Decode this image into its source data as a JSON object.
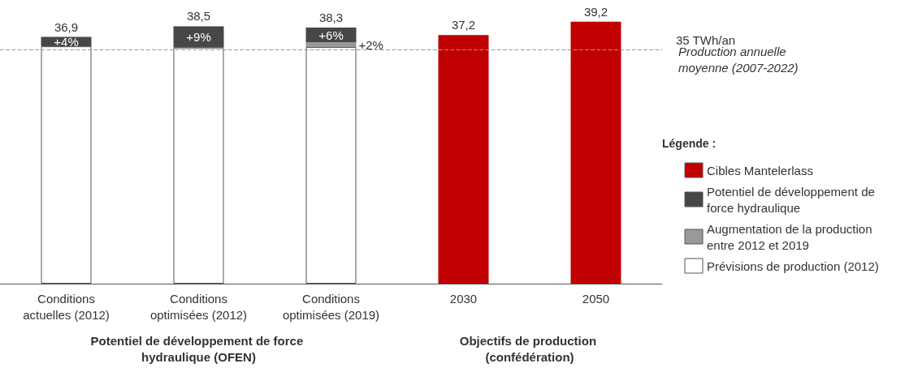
{
  "chart_data": {
    "type": "bar",
    "stacked": true,
    "categories": [
      "Conditions\nactuelles (2012)",
      "Conditions\noptimisées (2012)",
      "Conditions\noptimisées (2019)",
      "2030",
      "2050"
    ],
    "series": [
      {
        "name": "Prévisions de production (2012)",
        "color": "#ffffff",
        "values": [
          35.5,
          35.3,
          35.4,
          null,
          null
        ]
      },
      {
        "name": "Augmentation de la production entre 2012 et 2019",
        "color": "#999999",
        "values": [
          null,
          null,
          0.7,
          null,
          null
        ]
      },
      {
        "name": "Potentiel de développement de force hydraulique",
        "color": "#474747",
        "values": [
          1.4,
          3.2,
          2.2,
          null,
          null
        ]
      },
      {
        "name": "Cibles Mantelerlass",
        "color": "#c00000",
        "values": [
          null,
          null,
          null,
          37.2,
          39.2
        ],
        "value_labels": [
          null,
          null,
          null,
          "37,2",
          "39,2"
        ]
      }
    ],
    "totals": [
      "36,9",
      "38,5",
      "38,3",
      null,
      null
    ],
    "tick_labels": "x",
    "legend": "right",
    "legend_title": "Légende :",
    "ref_lines": [
      {
        "axis": "y",
        "value": 35,
        "label": "35 TWh/an",
        "color": "#999999",
        "line_style": "dashed"
      }
    ],
    "annotations": [
      "Production annuelle moyenne (2007-2022)",
      "Potentiel de développement de force hydraulique (OFEN)",
      "Objectifs de production (confédération)",
      "+4%",
      "+9%",
      "+6%",
      "+2%"
    ]
  }
}
